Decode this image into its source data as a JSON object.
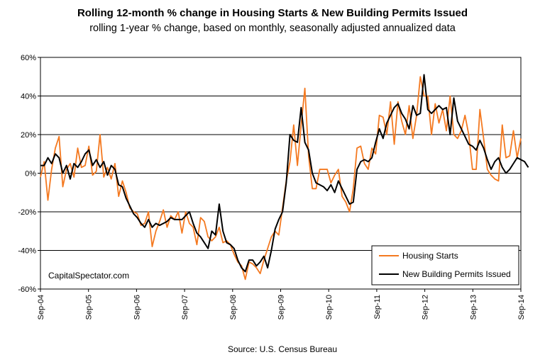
{
  "chart_data": {
    "type": "line",
    "title": "Rolling 12-month % change in Housing Starts & New Building Permits Issued",
    "subtitle": "rolling 1-year % change, based on monthly,  seasonally adjusted annualized data",
    "source": "Source: U.S. Census Bureau",
    "watermark": "CapitalSpectator.com",
    "x_labels": [
      "Sep-04",
      "Sep-05",
      "Sep-06",
      "Sep-07",
      "Sep-08",
      "Sep-09",
      "Sep-10",
      "Sep-11",
      "Sep-12",
      "Sep-13",
      "Sep-14"
    ],
    "y_ticks": [
      "60%",
      "40%",
      "20%",
      "0%",
      "-20%",
      "-40%",
      "-60%"
    ],
    "y_tick_values": [
      60,
      40,
      20,
      0,
      -20,
      -40,
      -60
    ],
    "ylim": [
      -60,
      60
    ],
    "x_range": [
      "Sep-04",
      "Sep-14"
    ],
    "grid": true,
    "legend_position": "bottom-right",
    "series": [
      {
        "name": "Housing Starts",
        "color": "#F47920",
        "values": [
          -2,
          6,
          -14,
          2,
          13,
          19,
          -7,
          2,
          5,
          -2,
          13,
          3,
          4,
          14,
          -1,
          1,
          20,
          -2,
          3,
          -3,
          5,
          -12,
          -4,
          -10,
          -18,
          -20,
          -21,
          -27,
          -26,
          -20,
          -38,
          -30,
          -25,
          -19,
          -28,
          -22,
          -24,
          -20,
          -31,
          -20,
          -26,
          -28,
          -37,
          -23,
          -25,
          -33,
          -35,
          -33,
          -28,
          -36,
          -35,
          -37,
          -42,
          -46,
          -48,
          -55,
          -46,
          -47,
          -49,
          -52,
          -45,
          -39,
          -33,
          -30,
          -32,
          -18,
          -4,
          6,
          25,
          4,
          25,
          44,
          9,
          -8,
          -8,
          2,
          2,
          2,
          -5,
          -1,
          2,
          -12,
          -15,
          -20,
          -8,
          13,
          14,
          5,
          2,
          13,
          10,
          30,
          29,
          20,
          37,
          15,
          37,
          27,
          20,
          35,
          18,
          30,
          50,
          40,
          40,
          20,
          36,
          26,
          33,
          22,
          40,
          20,
          18,
          22,
          30,
          20,
          2,
          2,
          33,
          18,
          2,
          -1,
          -3,
          -4,
          25,
          8,
          9,
          22,
          8,
          18
        ]
      },
      {
        "name": "New Building Permits Issued",
        "color": "#000000",
        "values": [
          4,
          4,
          8,
          5,
          10,
          8,
          0,
          4,
          -3,
          5,
          3,
          6,
          10,
          12,
          4,
          7,
          3,
          6,
          -1,
          4,
          2,
          -6,
          -7,
          -13,
          -17,
          -21,
          -23,
          -26,
          -28,
          -24,
          -28,
          -26,
          -27,
          -26,
          -25,
          -23,
          -24,
          -24,
          -24,
          -22,
          -20,
          -26,
          -31,
          -33,
          -36,
          -39,
          -30,
          -32,
          -16,
          -30,
          -36,
          -37,
          -39,
          -45,
          -49,
          -51,
          -45,
          -45,
          -48,
          -46,
          -43,
          -49,
          -40,
          -29,
          -24,
          -20,
          -5,
          20,
          17,
          16,
          34,
          16,
          12,
          0,
          -5,
          -6,
          -7,
          -9,
          -6,
          -10,
          -4,
          -8,
          -12,
          -16,
          -15,
          2,
          6,
          7,
          6,
          8,
          16,
          23,
          18,
          26,
          30,
          34,
          36,
          31,
          28,
          23,
          35,
          30,
          31,
          51,
          33,
          31,
          33,
          35,
          33,
          34,
          20,
          39,
          27,
          23,
          19,
          15,
          14,
          12,
          17,
          13,
          7,
          2,
          6,
          8,
          3,
          0,
          2,
          5,
          8,
          7,
          6,
          3
        ]
      }
    ]
  }
}
